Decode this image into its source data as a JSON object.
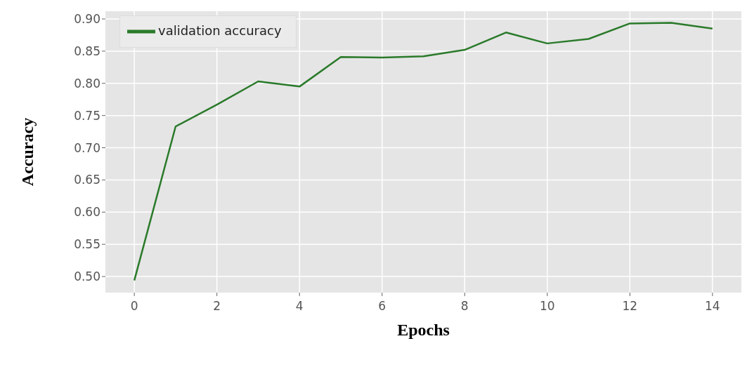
{
  "chart_data": {
    "type": "line",
    "xlabel": "Epochs",
    "ylabel": "Accuracy",
    "x": [
      0,
      1,
      2,
      3,
      4,
      5,
      6,
      7,
      8,
      9,
      10,
      11,
      12,
      13,
      14
    ],
    "series": [
      {
        "name": "validation accuracy",
        "color": "#2a7a2a",
        "values": [
          0.494,
          0.733,
          0.767,
          0.803,
          0.795,
          0.841,
          0.84,
          0.842,
          0.852,
          0.879,
          0.862,
          0.869,
          0.893,
          0.894,
          0.885
        ]
      }
    ],
    "xlim": [
      -0.7,
      14.7
    ],
    "xticks": [
      0,
      2,
      4,
      6,
      8,
      10,
      12,
      14
    ],
    "ylim": [
      0.475,
      0.912
    ],
    "yticks": [
      {
        "value": 0.5,
        "label": "0.50"
      },
      {
        "value": 0.55,
        "label": "0.55"
      },
      {
        "value": 0.6,
        "label": "0.60"
      },
      {
        "value": 0.65,
        "label": "0.65"
      },
      {
        "value": 0.7,
        "label": "0.70"
      },
      {
        "value": 0.75,
        "label": "0.75"
      },
      {
        "value": 0.8,
        "label": "0.80"
      },
      {
        "value": 0.85,
        "label": "0.85"
      },
      {
        "value": 0.9,
        "label": "0.90"
      }
    ],
    "grid": true,
    "legend": "top left",
    "marker": "none",
    "line_style": "solid"
  }
}
